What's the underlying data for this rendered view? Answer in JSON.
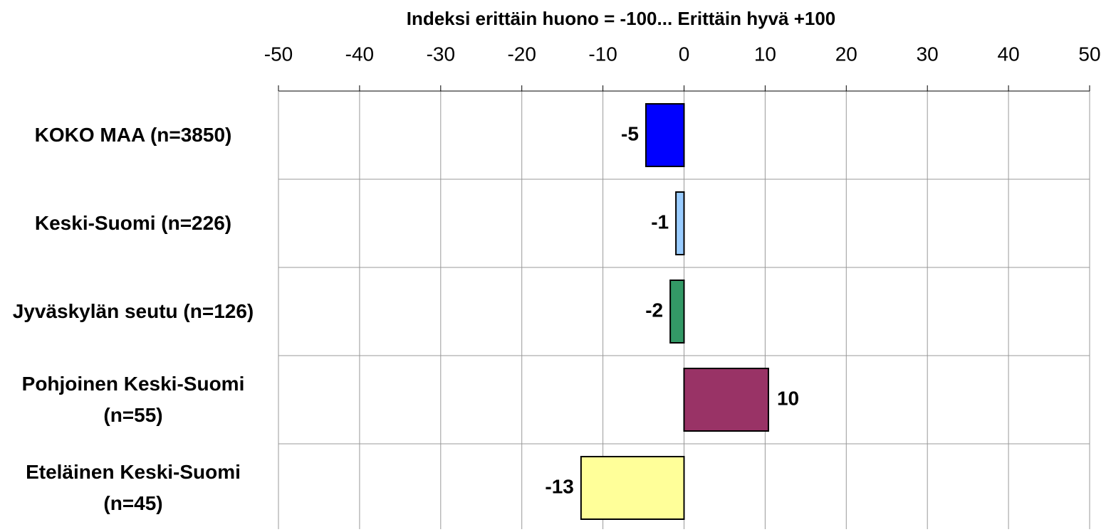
{
  "chart_data": {
    "type": "hbar",
    "title": "Indeksi erittäin huono = -100... Erittäin hyvä +100",
    "categories": [
      "KOKO MAA (n=3850)",
      "Keski-Suomi (n=226)",
      "Jyväskylän seutu (n=126)",
      "Pohjoinen Keski-Suomi (n=55)",
      "Eteläinen Keski-Suomi (n=45)"
    ],
    "values": [
      -4.7,
      -1,
      -1.7,
      10.4,
      -12.7
    ],
    "value_labels": [
      "-5",
      "-1",
      "-2",
      "10",
      "-13"
    ],
    "colors": [
      "#0000ff",
      "#99ccff",
      "#339966",
      "#993366",
      "#ffff99"
    ],
    "xlim": [
      -50,
      50
    ],
    "xticks": [
      -50,
      -40,
      -30,
      -20,
      -10,
      0,
      10,
      20,
      30,
      40,
      50
    ],
    "grid": true
  }
}
